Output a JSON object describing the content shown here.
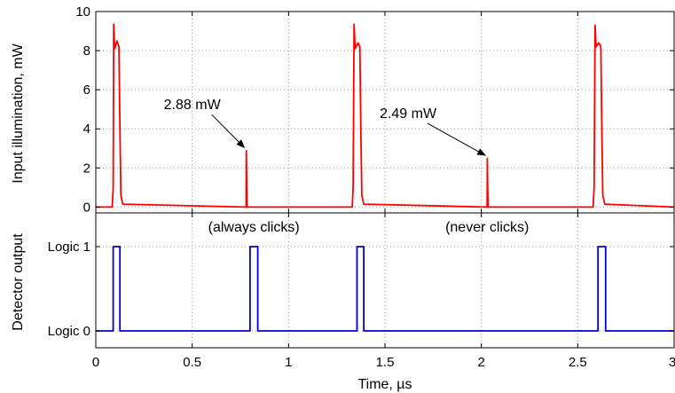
{
  "chart_data": [
    {
      "type": "line",
      "ylabel": "Input illumination, mW",
      "ylim": [
        -0.3,
        10
      ],
      "yticks": [
        0,
        2,
        4,
        6,
        8,
        10
      ],
      "ytick_labels": [
        "0",
        "2",
        "4",
        "6",
        "8",
        "10"
      ],
      "grid": true,
      "series": [
        {
          "color": "#ff0000",
          "x": [
            0,
            0.085,
            0.09,
            0.093,
            0.098,
            0.11,
            0.12,
            0.125,
            0.13,
            0.14,
            0.78,
            0.781,
            0.783,
            0.785,
            1.33,
            1.335,
            1.34,
            1.345,
            1.36,
            1.37,
            1.375,
            1.38,
            1.39,
            2.03,
            2.031,
            2.033,
            2.035,
            2.58,
            2.585,
            2.59,
            2.595,
            2.61,
            2.62,
            2.625,
            2.63,
            2.64,
            3.0
          ],
          "y": [
            0,
            0,
            1.0,
            9.35,
            8.1,
            8.5,
            8.2,
            4.0,
            0.6,
            0.15,
            0,
            2.88,
            1.0,
            0,
            0,
            1.0,
            9.35,
            8.1,
            8.4,
            8.2,
            4.0,
            0.6,
            0.15,
            0,
            2.49,
            1.0,
            0,
            0,
            1.0,
            9.3,
            8.2,
            8.4,
            8.2,
            4.0,
            0.6,
            0.15,
            0
          ]
        }
      ],
      "annotations": [
        {
          "text": "2.88 mW",
          "text_x": 0.5,
          "text_y": 5.0,
          "target_x": 0.78,
          "target_y": 2.95
        },
        {
          "text": "2.49 mW",
          "text_x": 1.62,
          "text_y": 4.55,
          "target_x": 2.03,
          "target_y": 2.55
        }
      ]
    },
    {
      "type": "line",
      "xlabel": "Time, µs",
      "ylabel": "Detector output",
      "xlim": [
        0,
        3
      ],
      "xticks": [
        0,
        0.5,
        1,
        1.5,
        2,
        2.5,
        3
      ],
      "xtick_labels": [
        "0",
        "0.5",
        "1",
        "1.5",
        "2",
        "2.5",
        "3"
      ],
      "ylim": [
        -0.2,
        1.4
      ],
      "yticks": [
        0,
        1
      ],
      "ytick_labels": [
        "Logic 0",
        "Logic 1"
      ],
      "grid": true,
      "series": [
        {
          "color": "#0000cc",
          "x": [
            0,
            0.09,
            0.09,
            0.125,
            0.125,
            0.8,
            0.8,
            0.84,
            0.84,
            1.355,
            1.355,
            1.39,
            1.39,
            2.605,
            2.605,
            2.645,
            2.645,
            3.0
          ],
          "y": [
            0,
            0,
            1,
            1,
            0,
            0,
            1,
            1,
            0,
            0,
            1,
            1,
            0,
            0,
            1,
            1,
            0,
            0
          ]
        }
      ],
      "annotations": [
        {
          "text": "(always clicks)",
          "x": 0.82,
          "y": 1.18
        },
        {
          "text": "(never clicks)",
          "x": 2.03,
          "y": 1.18
        }
      ]
    }
  ]
}
